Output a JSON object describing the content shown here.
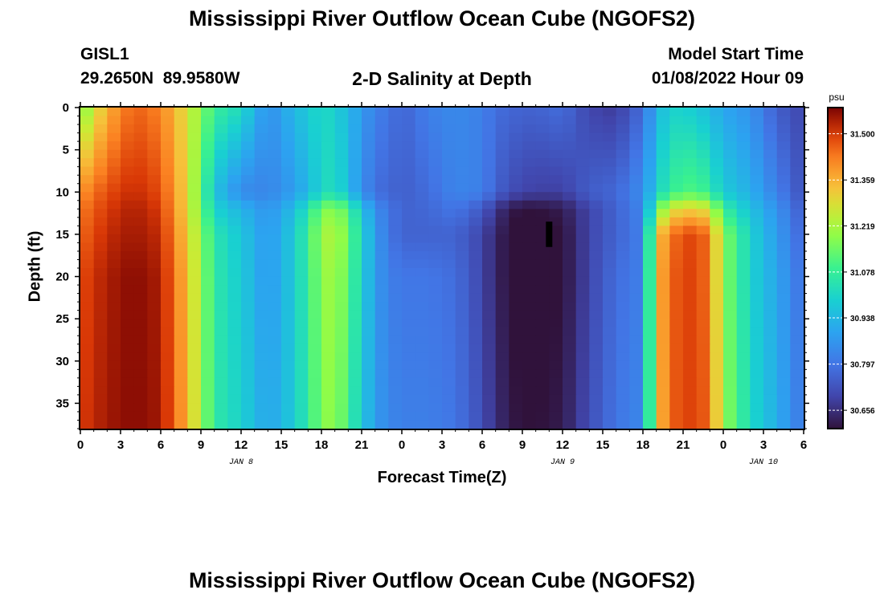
{
  "title": "Mississippi River Outflow Ocean Cube (NGOFS2)",
  "station": {
    "name": "GISL1",
    "coords": "29.2650N  89.9580W"
  },
  "subtitle": "2-D Salinity at Depth",
  "model_start": {
    "label": "Model Start Time",
    "value": "01/08/2022 Hour 09"
  },
  "footer_title": "Mississippi River Outflow Ocean Cube (NGOFS2)",
  "chart_data": {
    "type": "heatmap",
    "xlabel": "Forecast Time(Z)",
    "ylabel": "Depth (ft)",
    "x_ticks": [
      "0",
      "3",
      "6",
      "9",
      "12",
      "15",
      "18",
      "21",
      "0",
      "3",
      "6",
      "9",
      "12",
      "15",
      "18",
      "21",
      "0",
      "3",
      "6"
    ],
    "x_tick_hours": [
      0,
      3,
      6,
      9,
      12,
      15,
      18,
      21,
      24,
      27,
      30,
      33,
      36,
      39,
      42,
      45,
      48,
      51,
      54
    ],
    "date_labels": [
      {
        "text": "JAN 8",
        "hour": 12
      },
      {
        "text": "JAN 9",
        "hour": 36
      },
      {
        "text": "JAN 10",
        "hour": 51
      }
    ],
    "xlim": [
      0,
      54
    ],
    "y_ticks": [
      "0",
      "5",
      "10",
      "15",
      "20",
      "25",
      "30",
      "35"
    ],
    "y_tick_values": [
      0,
      5,
      10,
      15,
      20,
      25,
      30,
      35
    ],
    "ylim": [
      0,
      38
    ],
    "y_inverted": true,
    "colorbar": {
      "unit": "psu",
      "ticks": [
        "31.500",
        "31.359",
        "31.219",
        "31.078",
        "30.938",
        "30.797",
        "30.656"
      ],
      "tick_values": [
        31.5,
        31.359,
        31.219,
        31.078,
        30.938,
        30.797,
        30.656
      ],
      "range": [
        30.6,
        31.58
      ],
      "colormap": "turbo"
    },
    "marker": {
      "hour": 35,
      "depth_range": [
        13.5,
        16.5
      ],
      "color": "#000000"
    },
    "grid": {
      "time_hours": [
        0,
        2,
        4,
        6,
        8,
        10,
        12,
        14,
        16,
        18,
        19,
        20,
        22,
        23,
        24,
        26,
        28,
        30,
        31,
        32,
        33,
        34,
        36,
        38,
        40,
        42,
        43,
        44,
        46,
        47,
        48,
        50,
        52,
        54
      ],
      "depths": [
        0,
        10,
        12,
        15,
        20,
        40
      ],
      "values": [
        [
          31.16,
          31.36,
          31.46,
          31.42,
          31.28,
          31.08,
          31.02,
          30.85,
          30.94,
          31.02,
          30.99,
          30.94,
          30.82,
          30.8,
          30.76,
          30.82,
          30.84,
          30.82,
          30.78,
          30.77,
          30.76,
          30.76,
          30.78,
          30.7,
          30.68,
          30.78,
          30.92,
          31.0,
          30.98,
          30.94,
          30.9,
          30.86,
          30.75,
          30.7
        ],
        [
          31.4,
          31.48,
          31.52,
          31.48,
          31.3,
          30.96,
          30.84,
          30.83,
          30.88,
          31.0,
          31.04,
          30.94,
          30.78,
          30.77,
          30.75,
          30.78,
          30.83,
          30.82,
          30.76,
          30.72,
          30.7,
          30.69,
          30.69,
          30.75,
          30.77,
          30.85,
          30.98,
          31.08,
          31.12,
          31.06,
          30.98,
          30.92,
          30.82,
          30.72
        ],
        [
          31.43,
          31.5,
          31.54,
          31.5,
          31.3,
          31.0,
          30.93,
          30.86,
          30.95,
          31.15,
          31.2,
          31.1,
          30.85,
          30.8,
          30.76,
          30.77,
          30.8,
          30.74,
          30.67,
          30.62,
          30.6,
          30.6,
          30.62,
          30.7,
          30.76,
          30.83,
          31.12,
          31.28,
          31.32,
          31.26,
          31.08,
          30.96,
          30.86,
          30.74
        ],
        [
          31.45,
          31.52,
          31.55,
          31.52,
          31.32,
          31.05,
          30.97,
          30.87,
          30.98,
          31.2,
          31.24,
          31.14,
          30.88,
          30.8,
          30.76,
          30.76,
          30.76,
          30.7,
          30.64,
          30.6,
          30.58,
          30.58,
          30.6,
          30.7,
          30.76,
          30.82,
          31.3,
          31.44,
          31.5,
          31.42,
          31.18,
          31.0,
          30.88,
          30.76
        ],
        [
          31.48,
          31.54,
          31.57,
          31.54,
          31.34,
          31.06,
          30.98,
          30.87,
          30.98,
          31.18,
          31.22,
          31.12,
          30.88,
          30.82,
          30.8,
          30.8,
          30.78,
          30.7,
          30.64,
          30.6,
          30.58,
          30.58,
          30.6,
          30.7,
          30.78,
          30.82,
          31.32,
          31.46,
          31.5,
          31.42,
          31.18,
          31.0,
          30.9,
          30.78
        ],
        [
          31.5,
          31.55,
          31.57,
          31.55,
          31.36,
          31.06,
          31.0,
          30.9,
          30.98,
          31.16,
          31.2,
          31.08,
          30.88,
          30.84,
          30.82,
          30.82,
          30.8,
          30.72,
          30.66,
          30.62,
          30.6,
          30.6,
          30.62,
          30.72,
          30.8,
          30.84,
          31.3,
          31.46,
          31.5,
          31.44,
          31.2,
          31.02,
          30.92,
          30.8
        ]
      ]
    }
  }
}
